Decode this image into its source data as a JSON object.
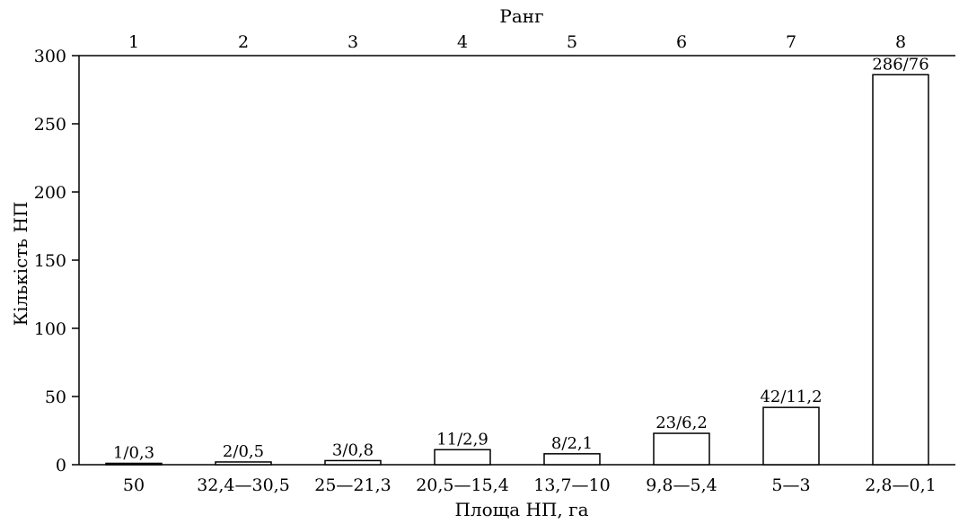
{
  "chart_data": {
    "type": "bar",
    "title": "",
    "xlabel": "Площа НП, га",
    "ylabel": "Кількість НП",
    "top_axis_label": "Ранг",
    "ranks": [
      "1",
      "2",
      "3",
      "4",
      "5",
      "6",
      "7",
      "8"
    ],
    "categories": [
      "50",
      "32,4—30,5",
      "25—21,3",
      "20,5—15,4",
      "13,7—10",
      "9,8—5,4",
      "5—3",
      "2,8—0,1"
    ],
    "values": [
      1,
      2,
      3,
      11,
      8,
      23,
      42,
      286
    ],
    "data_labels": [
      "1/0,3",
      "2/0,5",
      "3/0,8",
      "11/2,9",
      "8/2,1",
      "23/6,2",
      "42/11,2",
      "286/76"
    ],
    "ylim": [
      0,
      300
    ],
    "yticks": [
      0,
      50,
      100,
      150,
      200,
      250,
      300
    ],
    "grid": false,
    "colors": {
      "bar_fill": "#ffffff",
      "bar_stroke": "#000000",
      "axis": "#000000"
    }
  }
}
